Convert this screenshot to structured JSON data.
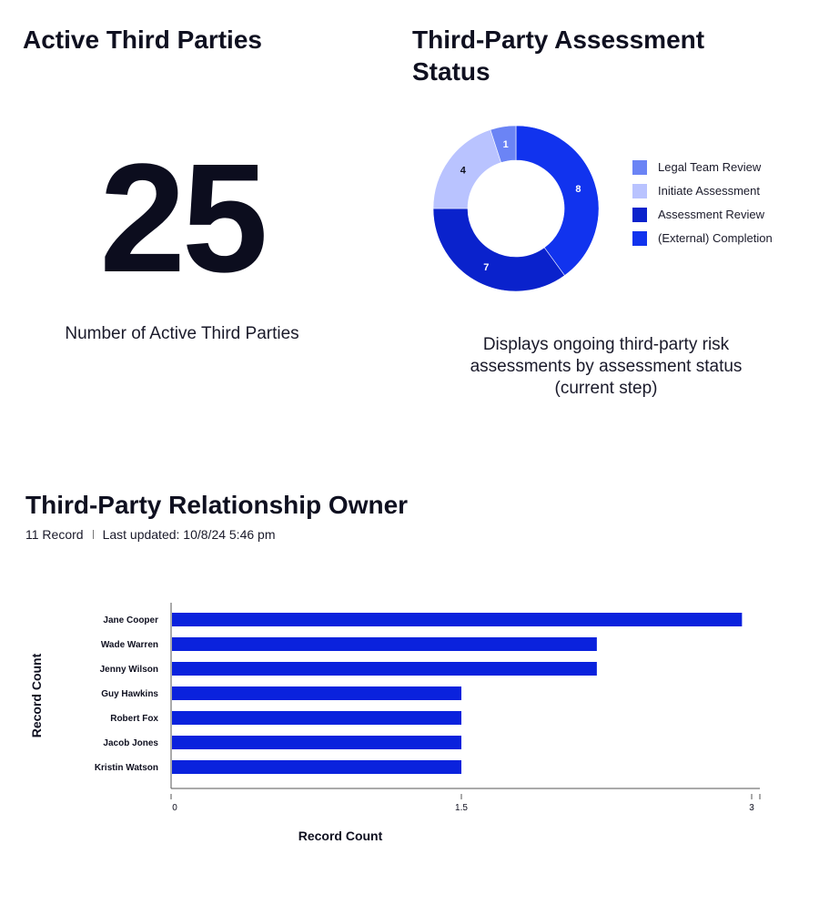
{
  "active_card": {
    "title": "Active Third Parties",
    "value": "25",
    "caption": "Number of Active Third Parties"
  },
  "status_card": {
    "title": "Third-Party Assessment Status",
    "caption": "Displays ongoing third-party risk assessments by assessment status (current step)"
  },
  "owner_card": {
    "title": "Third-Party Relationship Owner",
    "record_count": "11 Record",
    "last_updated": "Last updated: 10/8/24 5:46 pm"
  },
  "chart_data": [
    {
      "type": "pie",
      "variant": "donut",
      "title": "Third-Party Assessment Status",
      "legend_position": "right",
      "slices": [
        {
          "label": "(External) Completion",
          "value": 8,
          "color": "#1133ee"
        },
        {
          "label": "Assessment Review",
          "value": 7,
          "color": "#0a22cc"
        },
        {
          "label": "Initiate Assessment",
          "value": 4,
          "color": "#b9c3ff"
        },
        {
          "label": "Legal Team Review",
          "value": 1,
          "color": "#6b84f5"
        }
      ],
      "legend_order": [
        "Legal Team Review",
        "Initiate Assessment",
        "Assessment Review",
        "(External) Completion"
      ]
    },
    {
      "type": "bar",
      "orientation": "horizontal",
      "title": "Third-Party Relationship Owner",
      "categories": [
        "Jane Cooper",
        "Wade Warren",
        "Jenny Wilson",
        "Guy Hawkins",
        "Robert Fox",
        "Jacob Jones",
        "Kristin Watson"
      ],
      "values": [
        2.95,
        2.2,
        2.2,
        1.5,
        1.5,
        1.5,
        1.5
      ],
      "xlabel": "Record Count",
      "ylabel": "Record Count",
      "xlim": [
        0,
        3
      ],
      "xticks": [
        "0",
        "1.5",
        "3"
      ],
      "color": "#0a22dd",
      "grid": false
    }
  ]
}
